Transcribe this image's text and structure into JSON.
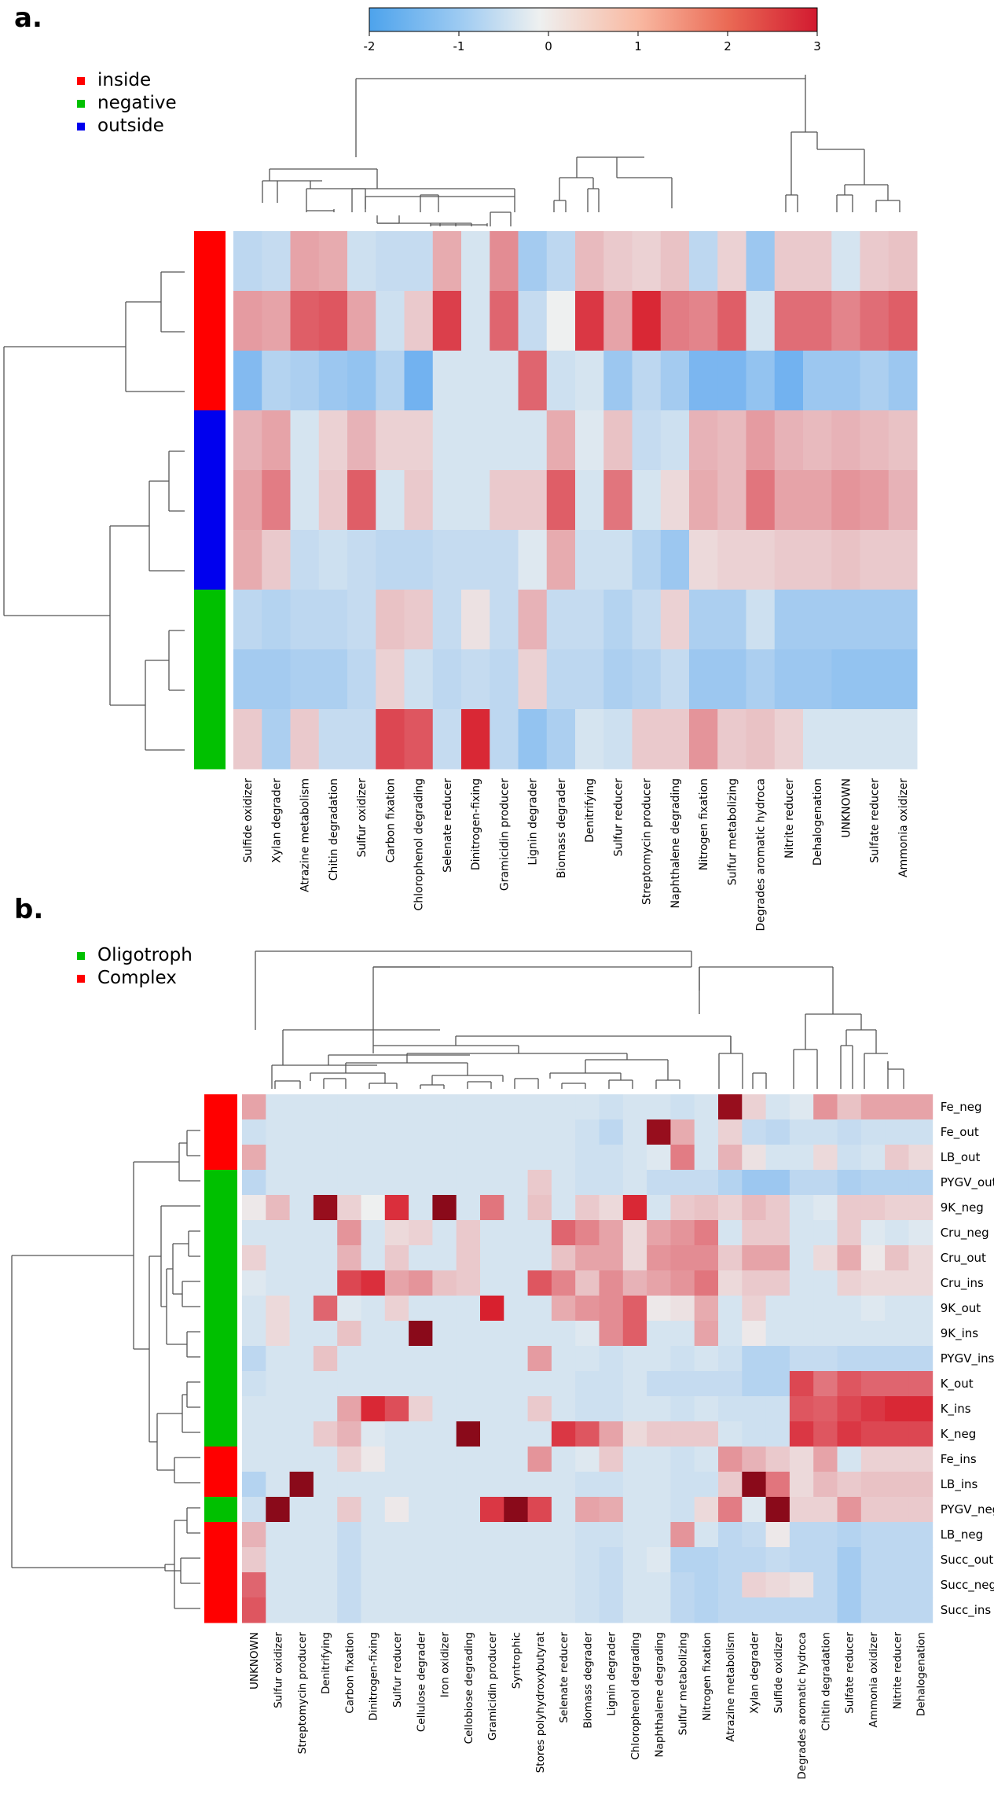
{
  "colors": {
    "neg": "#6aaef0",
    "mid": "#eef0f0",
    "pos": "#d8202e",
    "deep": "#8a0a1a",
    "group_red": "#ff0000",
    "group_green": "#00c000",
    "group_blue": "#0000ee"
  },
  "chart_data": [
    {
      "type": "heatmap",
      "panel_label": "a.",
      "colorbar": {
        "min": -2,
        "max": 3,
        "ticks": [
          "-2",
          "-1",
          "0",
          "1",
          "2",
          "3"
        ]
      },
      "legend": [
        {
          "label": "inside",
          "color": "group_red"
        },
        {
          "label": "negative",
          "color": "group_green"
        },
        {
          "label": "outside",
          "color": "group_blue"
        }
      ],
      "row_groups": [
        "inside",
        "inside",
        "inside",
        "outside",
        "outside",
        "outside",
        "negative",
        "negative",
        "negative"
      ],
      "columns": [
        "Sulfide oxidizer",
        "Xylan degrader",
        "Atrazine metabolism",
        "Chitin degradation",
        "Sulfur oxidizer",
        "Carbon fixation",
        "Chlorophenol degrading",
        "Selenate reducer",
        "Dinitrogen-fixing",
        "Gramicidin producer",
        "Lignin degrader",
        "Biomass degrader",
        "Denitrifying",
        "Sulfur reducer",
        "Streptomycin producer",
        "Naphthalene degrading",
        "Nitrogen fixation",
        "Sulfur metabolizing",
        "Degrades aromatic hydroca",
        "Nitrite reducer",
        "Dehalogenation",
        "UNKNOWN",
        "Sulfate reducer",
        "Ammonia oxidizer"
      ],
      "values": [
        [
          -0.6,
          -0.5,
          1.0,
          0.9,
          -0.4,
          -0.5,
          -0.5,
          0.9,
          -0.3,
          1.3,
          -0.9,
          -0.6,
          0.7,
          0.5,
          0.4,
          0.6,
          -0.6,
          0.4,
          -1.0,
          0.5,
          0.5,
          -0.3,
          0.5,
          0.6
        ],
        [
          1.1,
          1.0,
          1.9,
          2.0,
          1.0,
          -0.4,
          0.5,
          2.3,
          -0.3,
          1.8,
          -0.5,
          0.0,
          2.4,
          1.0,
          2.6,
          1.5,
          1.4,
          1.9,
          -0.3,
          1.7,
          1.7,
          1.4,
          1.7,
          1.9
        ],
        [
          -1.3,
          -0.7,
          -0.8,
          -1.0,
          -1.1,
          -0.7,
          -1.5,
          -0.3,
          -0.3,
          -0.3,
          1.8,
          -0.4,
          -0.3,
          -1.0,
          -0.6,
          -0.9,
          -1.4,
          -1.4,
          -1.1,
          -1.5,
          -1.0,
          -1.0,
          -0.8,
          -1.0
        ],
        [
          0.8,
          1.0,
          -0.3,
          0.4,
          0.8,
          0.4,
          0.4,
          -0.3,
          -0.3,
          -0.3,
          -0.3,
          0.9,
          -0.2,
          0.6,
          -0.5,
          -0.4,
          0.8,
          0.7,
          1.1,
          0.8,
          0.7,
          0.8,
          0.7,
          0.6
        ],
        [
          1.0,
          1.5,
          -0.3,
          0.5,
          1.9,
          -0.3,
          0.5,
          -0.3,
          -0.3,
          0.5,
          0.5,
          1.9,
          -0.3,
          1.6,
          -0.3,
          0.3,
          0.9,
          0.7,
          1.6,
          1.0,
          1.0,
          1.2,
          1.1,
          0.8
        ],
        [
          0.9,
          0.5,
          -0.5,
          -0.4,
          -0.5,
          -0.6,
          -0.6,
          -0.5,
          -0.5,
          -0.5,
          -0.2,
          0.9,
          -0.4,
          -0.4,
          -0.7,
          -1.0,
          0.3,
          0.4,
          0.4,
          0.5,
          0.5,
          0.6,
          0.5,
          0.5
        ],
        [
          -0.6,
          -0.7,
          -0.6,
          -0.6,
          -0.5,
          0.6,
          0.5,
          -0.5,
          0.2,
          -0.5,
          0.8,
          -0.5,
          -0.5,
          -0.7,
          -0.5,
          0.4,
          -0.8,
          -0.8,
          -0.4,
          -0.9,
          -0.9,
          -0.9,
          -0.9,
          -0.9
        ],
        [
          -0.9,
          -0.9,
          -0.8,
          -0.8,
          -0.6,
          0.4,
          -0.4,
          -0.6,
          -0.5,
          -0.6,
          0.4,
          -0.6,
          -0.6,
          -0.8,
          -0.7,
          -0.5,
          -1.0,
          -1.0,
          -0.8,
          -1.0,
          -1.0,
          -1.1,
          -1.1,
          -1.1
        ],
        [
          0.5,
          -0.8,
          0.5,
          -0.5,
          -0.5,
          2.2,
          2.0,
          -0.5,
          2.6,
          -0.6,
          -1.1,
          -0.8,
          -0.3,
          -0.4,
          0.5,
          0.5,
          1.2,
          0.5,
          0.6,
          0.4,
          -0.3,
          -0.3,
          -0.3,
          -0.3
        ]
      ]
    },
    {
      "type": "heatmap",
      "panel_label": "b.",
      "legend": [
        {
          "label": "Oligotroph",
          "color": "group_green"
        },
        {
          "label": "Complex",
          "color": "group_red"
        }
      ],
      "row_groups": [
        "complex",
        "complex",
        "complex",
        "oligo",
        "oligo",
        "oligo",
        "oligo",
        "oligo",
        "oligo",
        "oligo",
        "oligo",
        "oligo",
        "oligo",
        "oligo",
        "complex",
        "complex",
        "oligo",
        "complex",
        "complex",
        "complex",
        "complex"
      ],
      "rows": [
        "Fe_neg",
        "Fe_out",
        "LB_out",
        "PYGV_out",
        "9K_neg",
        "Cru_neg",
        "Cru_out",
        "Cru_ins",
        "9K_out",
        "9K_ins",
        "PYGV_ins",
        "K_out",
        "K_ins",
        "K_neg",
        "Fe_ins",
        "LB_ins",
        "PYGV_neg",
        "LB_neg",
        "Succ_out",
        "Succ_neg",
        "Succ_ins"
      ],
      "columns": [
        "UNKNOWN",
        "Sulfur oxidizer",
        "Streptomycin producer",
        "Denitrifying",
        "Carbon fixation",
        "Dinitrogen-fixing",
        "Sulfur reducer",
        "Cellulose degrader",
        "Iron oxidizer",
        "Cellobiose degrading",
        "Gramicidin producer",
        "Syntrophic",
        "Stores polyhydroxybutyrat",
        "Selenate reducer",
        "Biomass degrader",
        "Lignin degrader",
        "Chlorophenol degrading",
        "Naphthalene degrading",
        "Sulfur metabolizing",
        "Nitrogen fixation",
        "Atrazine metabolism",
        "Xylan degrader",
        "Sulfide oxidizer",
        "Degrades aromatic hydroca",
        "Chitin degradation",
        "Sulfate reducer",
        "Ammonia oxidizer",
        "Nitrite reducer",
        "Dehalogenation"
      ],
      "values": [
        [
          1.0,
          -0.3,
          -0.3,
          -0.3,
          -0.3,
          -0.3,
          -0.3,
          -0.3,
          -0.3,
          -0.3,
          -0.3,
          -0.3,
          -0.3,
          -0.3,
          -0.3,
          -0.4,
          -0.3,
          -0.3,
          -0.4,
          -0.3,
          3.2,
          0.4,
          -0.3,
          -0.2,
          1.2,
          0.6,
          1.0,
          1.0,
          1.0
        ],
        [
          -0.4,
          -0.3,
          -0.3,
          -0.3,
          -0.3,
          -0.3,
          -0.3,
          -0.3,
          -0.3,
          -0.3,
          -0.3,
          -0.3,
          -0.3,
          -0.3,
          -0.4,
          -0.6,
          -0.3,
          3.2,
          0.9,
          -0.3,
          0.4,
          -0.5,
          -0.6,
          -0.4,
          -0.4,
          -0.5,
          -0.4,
          -0.4,
          -0.4
        ],
        [
          0.9,
          -0.3,
          -0.3,
          -0.3,
          -0.3,
          -0.3,
          -0.3,
          -0.3,
          -0.3,
          -0.3,
          -0.3,
          -0.3,
          -0.3,
          -0.3,
          -0.4,
          -0.4,
          -0.3,
          -0.2,
          1.5,
          -0.3,
          0.8,
          0.2,
          -0.3,
          -0.3,
          0.3,
          -0.4,
          -0.3,
          0.5,
          0.3
        ],
        [
          -0.6,
          -0.3,
          -0.3,
          -0.3,
          -0.3,
          -0.3,
          -0.3,
          -0.3,
          -0.3,
          -0.3,
          -0.3,
          -0.3,
          0.5,
          -0.3,
          -0.4,
          -0.4,
          -0.3,
          -0.5,
          -0.5,
          -0.5,
          -0.7,
          -1.0,
          -1.0,
          -0.6,
          -0.6,
          -0.8,
          -0.7,
          -0.7,
          -0.7
        ],
        [
          0.1,
          0.7,
          -0.3,
          3.2,
          0.4,
          0.0,
          2.5,
          -0.3,
          3.4,
          -0.3,
          1.6,
          -0.3,
          0.6,
          -0.3,
          0.5,
          0.3,
          2.6,
          -0.3,
          0.5,
          0.6,
          0.4,
          0.7,
          0.5,
          -0.3,
          -0.2,
          0.5,
          0.5,
          0.4,
          0.4
        ],
        [
          -0.3,
          -0.3,
          -0.3,
          -0.3,
          1.2,
          -0.3,
          0.3,
          0.4,
          -0.3,
          0.5,
          -0.3,
          -0.3,
          -0.3,
          1.8,
          1.4,
          1.0,
          0.3,
          1.0,
          1.2,
          1.5,
          -0.3,
          0.5,
          0.5,
          -0.3,
          -0.3,
          0.5,
          -0.2,
          -0.3,
          -0.2
        ],
        [
          0.4,
          -0.3,
          -0.3,
          -0.3,
          0.8,
          -0.3,
          0.5,
          -0.3,
          -0.3,
          0.5,
          -0.3,
          -0.3,
          -0.3,
          0.6,
          1.0,
          1.0,
          0.3,
          1.2,
          1.3,
          1.3,
          0.5,
          1.0,
          1.0,
          -0.3,
          0.3,
          0.9,
          0.1,
          0.6,
          0.3
        ],
        [
          -0.2,
          -0.3,
          -0.3,
          -0.3,
          2.2,
          2.5,
          1.0,
          1.2,
          0.6,
          0.5,
          -0.3,
          -0.3,
          2.0,
          1.4,
          0.6,
          1.3,
          0.8,
          1.0,
          1.2,
          1.6,
          0.3,
          0.5,
          0.5,
          -0.3,
          -0.3,
          0.4,
          0.3,
          0.3,
          0.3
        ],
        [
          -0.3,
          0.3,
          -0.3,
          1.8,
          -0.2,
          -0.3,
          0.4,
          -0.3,
          -0.3,
          -0.3,
          2.7,
          -0.3,
          -0.3,
          0.9,
          1.2,
          1.3,
          1.9,
          0.1,
          0.2,
          0.9,
          -0.3,
          0.4,
          -0.3,
          -0.3,
          -0.3,
          -0.3,
          -0.2,
          -0.3,
          -0.3
        ],
        [
          -0.3,
          0.3,
          -0.3,
          -0.3,
          0.6,
          -0.3,
          -0.3,
          3.4,
          -0.3,
          -0.3,
          -0.3,
          -0.3,
          -0.3,
          -0.3,
          -0.2,
          1.3,
          1.9,
          -0.3,
          -0.3,
          1.0,
          -0.3,
          0.1,
          -0.3,
          -0.3,
          -0.3,
          -0.3,
          -0.3,
          -0.3,
          -0.3
        ],
        [
          -0.6,
          -0.3,
          -0.3,
          0.6,
          -0.3,
          -0.3,
          -0.3,
          -0.3,
          -0.3,
          -0.3,
          -0.3,
          -0.3,
          1.1,
          -0.3,
          -0.3,
          -0.4,
          -0.3,
          -0.3,
          -0.4,
          -0.3,
          -0.4,
          -0.7,
          -0.7,
          -0.5,
          -0.5,
          -0.6,
          -0.6,
          -0.6,
          -0.6
        ],
        [
          -0.4,
          -0.3,
          -0.3,
          -0.3,
          -0.3,
          -0.3,
          -0.3,
          -0.3,
          -0.3,
          -0.3,
          -0.3,
          -0.3,
          -0.3,
          -0.3,
          -0.4,
          -0.4,
          -0.3,
          -0.5,
          -0.5,
          -0.5,
          -0.5,
          -0.7,
          -0.7,
          2.2,
          1.6,
          2.0,
          1.8,
          1.8,
          1.8
        ],
        [
          -0.3,
          -0.3,
          -0.3,
          -0.3,
          1.0,
          2.6,
          2.1,
          0.4,
          -0.3,
          -0.3,
          -0.3,
          -0.3,
          0.5,
          -0.3,
          -0.4,
          -0.4,
          -0.3,
          -0.3,
          -0.4,
          -0.3,
          -0.4,
          -0.4,
          -0.4,
          2.0,
          1.9,
          2.2,
          2.4,
          2.6,
          2.6
        ],
        [
          -0.3,
          -0.3,
          -0.3,
          0.5,
          0.8,
          -0.2,
          -0.3,
          -0.3,
          -0.3,
          3.4,
          -0.3,
          -0.3,
          -0.3,
          2.4,
          2.0,
          1.0,
          0.3,
          0.5,
          0.5,
          0.5,
          -0.3,
          -0.4,
          -0.4,
          2.4,
          2.0,
          2.4,
          2.2,
          2.2,
          2.2
        ],
        [
          -0.3,
          -0.3,
          -0.3,
          -0.3,
          0.4,
          0.1,
          -0.3,
          -0.3,
          -0.3,
          -0.3,
          -0.3,
          -0.3,
          1.2,
          -0.3,
          -0.2,
          0.5,
          -0.3,
          -0.3,
          -0.4,
          -0.3,
          1.2,
          0.8,
          0.5,
          0.3,
          1.0,
          -0.3,
          0.4,
          0.4,
          0.4
        ],
        [
          -0.7,
          -0.3,
          3.4,
          -0.3,
          -0.3,
          -0.3,
          -0.3,
          -0.3,
          -0.3,
          -0.3,
          -0.3,
          -0.3,
          -0.3,
          -0.3,
          -0.4,
          -0.4,
          -0.3,
          -0.3,
          -0.4,
          -0.4,
          0.5,
          3.4,
          1.6,
          0.3,
          0.7,
          0.5,
          0.6,
          0.6,
          0.6
        ],
        [
          -0.4,
          3.4,
          -0.3,
          -0.3,
          0.5,
          -0.3,
          0.1,
          -0.3,
          -0.3,
          -0.3,
          2.4,
          3.4,
          2.2,
          -0.3,
          1.0,
          0.9,
          -0.3,
          -0.3,
          -0.4,
          0.3,
          1.5,
          -0.2,
          3.4,
          0.4,
          0.4,
          1.2,
          0.5,
          0.5,
          0.5
        ],
        [
          0.8,
          -0.3,
          -0.3,
          -0.3,
          -0.5,
          -0.3,
          -0.3,
          -0.3,
          -0.3,
          -0.3,
          -0.3,
          -0.3,
          -0.3,
          -0.3,
          -0.4,
          -0.4,
          -0.3,
          -0.3,
          1.2,
          -0.3,
          -0.6,
          -0.5,
          0.1,
          -0.6,
          -0.6,
          -0.7,
          -0.6,
          -0.6,
          -0.6
        ],
        [
          0.5,
          -0.3,
          -0.3,
          -0.3,
          -0.5,
          -0.3,
          -0.3,
          -0.3,
          -0.3,
          -0.3,
          -0.3,
          -0.3,
          -0.3,
          -0.3,
          -0.4,
          -0.5,
          -0.3,
          -0.2,
          -0.7,
          -0.7,
          -0.6,
          -0.6,
          -0.5,
          -0.6,
          -0.6,
          -0.9,
          -0.6,
          -0.6,
          -0.6
        ],
        [
          1.8,
          -0.3,
          -0.3,
          -0.3,
          -0.5,
          -0.3,
          -0.3,
          -0.3,
          -0.3,
          -0.3,
          -0.3,
          -0.3,
          -0.3,
          -0.3,
          -0.4,
          -0.5,
          -0.3,
          -0.3,
          -0.6,
          -0.7,
          -0.6,
          0.4,
          0.3,
          0.2,
          -0.6,
          -0.9,
          -0.6,
          -0.6,
          -0.6
        ],
        [
          2.0,
          -0.3,
          -0.3,
          -0.3,
          -0.5,
          -0.3,
          -0.3,
          -0.3,
          -0.3,
          -0.3,
          -0.3,
          -0.3,
          -0.3,
          -0.3,
          -0.4,
          -0.5,
          -0.3,
          -0.3,
          -0.6,
          -0.7,
          -0.6,
          -0.6,
          -0.6,
          -0.6,
          -0.6,
          -0.9,
          -0.6,
          -0.6,
          -0.6
        ]
      ]
    }
  ]
}
